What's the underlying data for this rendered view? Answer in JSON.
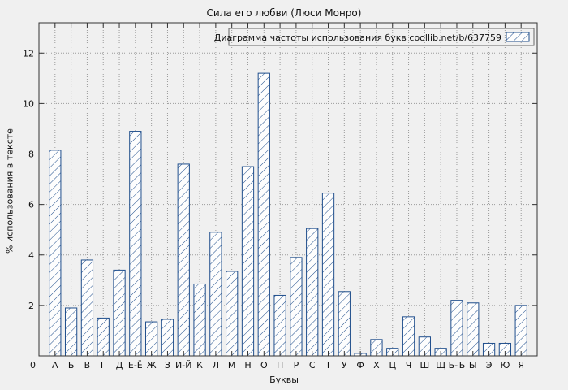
{
  "chart_data": {
    "type": "bar",
    "title": "Сила его любви (Люси Монро)",
    "legend": "Диаграмма частоты использования букв coollib.net/b/637759",
    "xlabel": "Буквы",
    "ylabel": "% использования в тексте",
    "origin_label": "0",
    "categories": [
      "А",
      "Б",
      "В",
      "Г",
      "Д",
      "Е-Ё",
      "Ж",
      "З",
      "И-Й",
      "К",
      "Л",
      "М",
      "Н",
      "О",
      "П",
      "Р",
      "С",
      "Т",
      "У",
      "Ф",
      "Х",
      "Ц",
      "Ч",
      "Ш",
      "Щ",
      "Ь-Ъ",
      "Ы",
      "Э",
      "Ю",
      "Я"
    ],
    "values": [
      8.15,
      1.9,
      3.8,
      1.5,
      3.4,
      8.9,
      1.35,
      1.45,
      7.6,
      2.85,
      4.9,
      3.35,
      7.5,
      11.2,
      2.4,
      3.9,
      5.05,
      6.45,
      2.55,
      0.1,
      0.65,
      0.3,
      1.55,
      0.75,
      0.3,
      2.2,
      2.1,
      0.5,
      0.5,
      2.0
    ],
    "yticks": [
      0,
      2,
      4,
      6,
      8,
      10,
      12
    ],
    "ylim": [
      0,
      13.2
    ],
    "grid": true,
    "legend_position": "top-right",
    "bar_color": "#1f4e8c",
    "bar_fill": "#fdfdfd",
    "background": "#f0f0f0"
  }
}
